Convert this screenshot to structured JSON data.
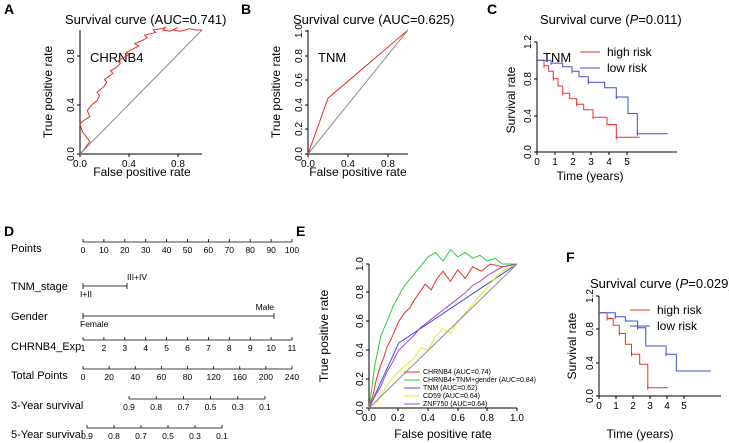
{
  "chart_data": [
    {
      "panel": "A",
      "type": "line",
      "title": "Survival curve (AUC=0.741)",
      "xlabel": "False positive rate",
      "ylabel": "True positive rate",
      "xlim": [
        0,
        1
      ],
      "ylim": [
        0,
        1
      ],
      "xticks": [
        "0.0",
        "0.4",
        "0.8"
      ],
      "yticks": [
        "0.0",
        "0.4",
        "0.8"
      ],
      "annotation": "CHRNB4",
      "series": [
        {
          "name": "CHRNB4",
          "color": "#e8302a",
          "x": [
            0,
            0.02,
            0.05,
            0.08,
            0.05,
            0.02,
            0.0,
            0.03,
            0.08,
            0.06,
            0.1,
            0.14,
            0.16,
            0.14,
            0.18,
            0.2,
            0.22,
            0.2,
            0.24,
            0.27,
            0.25,
            0.3,
            0.33,
            0.31,
            0.36,
            0.4,
            0.38,
            0.44,
            0.48,
            0.45,
            0.52,
            0.55,
            0.53,
            0.58,
            0.62,
            0.6,
            0.66,
            0.7,
            0.68,
            0.74,
            0.78,
            0.8,
            0.76,
            0.82,
            0.86,
            0.9,
            0.95,
            1.0
          ],
          "y": [
            0,
            0.02,
            0.06,
            0.1,
            0.14,
            0.18,
            0.24,
            0.27,
            0.3,
            0.35,
            0.4,
            0.43,
            0.47,
            0.5,
            0.53,
            0.55,
            0.58,
            0.6,
            0.63,
            0.65,
            0.67,
            0.7,
            0.73,
            0.75,
            0.78,
            0.8,
            0.82,
            0.85,
            0.87,
            0.89,
            0.92,
            0.94,
            0.96,
            0.97,
            0.98,
            1.0,
            1.01,
            1.02,
            1.0,
            0.99,
            1.01,
            1.02,
            1.0,
            0.99,
            1.0,
            1.01,
            1.0,
            1.0
          ]
        },
        {
          "name": "reference",
          "color": "#8c8c8c",
          "x": [
            0,
            1
          ],
          "y": [
            0,
            1
          ]
        }
      ]
    },
    {
      "panel": "B",
      "type": "line",
      "title": "Survival curve (AUC=0.625)",
      "xlabel": "False positive rate",
      "ylabel": "True positive rate",
      "xlim": [
        0,
        1
      ],
      "ylim": [
        0,
        1
      ],
      "xticks": [
        "0.0",
        "0.4",
        "0.8"
      ],
      "yticks": [
        "0.0",
        "0.2",
        "0.4",
        "0.6",
        "0.8",
        "1.0"
      ],
      "annotation": "TNM",
      "series": [
        {
          "name": "TNM",
          "color": "#e8302a",
          "x": [
            0,
            0.2,
            1
          ],
          "y": [
            0,
            0.45,
            1
          ]
        },
        {
          "name": "reference",
          "color": "#8c8c8c",
          "x": [
            0,
            1
          ],
          "y": [
            0,
            1
          ]
        }
      ]
    },
    {
      "panel": "C",
      "type": "line",
      "title_prefix": "Survival curve (",
      "title_p": "P",
      "title_suffix": "=0.011)",
      "xlabel": "Time (years)",
      "ylabel": "Survival rate",
      "xlim": [
        0,
        6
      ],
      "ylim": [
        0,
        1.2
      ],
      "xticks": [
        "0",
        "1",
        "2",
        "3",
        "4",
        "5"
      ],
      "yticks": [
        "0.0",
        "0.4",
        "0.8",
        "1.2"
      ],
      "annotation": "TNM",
      "legend": [
        "high risk",
        "low risk"
      ],
      "series": [
        {
          "name": "high risk",
          "color": "#e8302a",
          "x": [
            0,
            0.3,
            0.3,
            0.5,
            0.5,
            0.7,
            0.7,
            0.9,
            0.9,
            1.1,
            1.1,
            1.4,
            1.4,
            1.7,
            1.7,
            2.0,
            2.0,
            2.4,
            2.4,
            3.0,
            3.0,
            3.4,
            3.4,
            4.4
          ],
          "y": [
            1.0,
            1.0,
            0.94,
            0.94,
            0.88,
            0.88,
            0.8,
            0.8,
            0.72,
            0.72,
            0.64,
            0.64,
            0.58,
            0.58,
            0.52,
            0.52,
            0.46,
            0.46,
            0.38,
            0.38,
            0.3,
            0.3,
            0.16,
            0.16
          ]
        },
        {
          "name": "low risk",
          "color": "#3f4fd6",
          "x": [
            0,
            0.6,
            0.6,
            1.1,
            1.1,
            1.5,
            1.5,
            1.8,
            1.8,
            2.2,
            2.2,
            2.9,
            2.9,
            3.4,
            3.4,
            3.9,
            3.9,
            4.3,
            4.3,
            5.6
          ],
          "y": [
            1.0,
            1.0,
            0.97,
            0.97,
            0.93,
            0.93,
            0.88,
            0.88,
            0.82,
            0.82,
            0.76,
            0.76,
            0.7,
            0.7,
            0.6,
            0.6,
            0.42,
            0.42,
            0.2,
            0.2
          ]
        }
      ]
    },
    {
      "panel": "D",
      "type": "nomogram",
      "rows": [
        {
          "label": "Points",
          "scale": [
            "0",
            "10",
            "20",
            "30",
            "40",
            "50",
            "60",
            "70",
            "80",
            "90",
            "100"
          ]
        },
        {
          "label": "TNM_stage",
          "above": "III+IV",
          "below": "I+II"
        },
        {
          "label": "Gender",
          "above": "Male",
          "below": "Female"
        },
        {
          "label": "CHRNB4_Exp",
          "scale": [
            "1",
            "2",
            "3",
            "4",
            "5",
            "6",
            "7",
            "8",
            "9",
            "10",
            "11"
          ]
        },
        {
          "label": "Total Points",
          "scale": [
            "0",
            "20",
            "40",
            "60",
            "80",
            "120",
            "160",
            "200",
            "240"
          ]
        },
        {
          "label": "3-Year survival",
          "scale": [
            "0.9",
            "0.8",
            "0.7",
            "0.5",
            "0.3",
            "0.1"
          ]
        },
        {
          "label": "5-Year survival",
          "scale": [
            "0.9",
            "0.8",
            "0.7",
            "0.5",
            "0.3",
            "0.1"
          ]
        }
      ]
    },
    {
      "panel": "E",
      "type": "line",
      "xlabel": "False positive rate",
      "ylabel": "True positive rate",
      "xlim": [
        0,
        1
      ],
      "ylim": [
        0,
        1
      ],
      "xticks": [
        "0.0",
        "0.2",
        "0.4",
        "0.6",
        "0.8",
        "1.0"
      ],
      "yticks": [
        "0.0",
        "0.2",
        "0.4",
        "0.6",
        "0.8",
        "1.0"
      ],
      "legend": [
        "CHRNB4 (AUC=0.74)",
        "CHRNB4+TNM+gender (AUC=0.84)",
        "TNM (AUC=0.62)",
        "CD59 (AUC=0.64)",
        "ZNF750 (AUC=0.64)"
      ],
      "series": [
        {
          "name": "CHRNB4",
          "color": "#e8302a",
          "x": [
            0,
            0.03,
            0.05,
            0.08,
            0.1,
            0.12,
            0.15,
            0.18,
            0.2,
            0.24,
            0.28,
            0.3,
            0.34,
            0.38,
            0.42,
            0.46,
            0.5,
            0.55,
            0.6,
            0.65,
            0.7,
            0.76,
            0.82,
            0.9,
            1.0
          ],
          "y": [
            0,
            0.1,
            0.2,
            0.3,
            0.35,
            0.42,
            0.48,
            0.55,
            0.6,
            0.66,
            0.7,
            0.74,
            0.8,
            0.86,
            0.82,
            0.9,
            0.95,
            0.88,
            0.96,
            0.9,
            0.98,
            0.95,
            1.0,
            0.98,
            1.0
          ]
        },
        {
          "name": "CHRNB4+TNM+gender",
          "color": "#2ccd36",
          "x": [
            0,
            0.02,
            0.04,
            0.06,
            0.08,
            0.1,
            0.13,
            0.16,
            0.2,
            0.24,
            0.28,
            0.32,
            0.36,
            0.4,
            0.45,
            0.5,
            0.55,
            0.6,
            0.65,
            0.7,
            0.75,
            0.8,
            0.85,
            0.9,
            1.0
          ],
          "y": [
            0,
            0.15,
            0.3,
            0.4,
            0.5,
            0.55,
            0.62,
            0.7,
            0.78,
            0.85,
            0.9,
            0.95,
            1.0,
            1.05,
            1.08,
            1.02,
            1.1,
            1.05,
            1.08,
            1.04,
            1.06,
            1.02,
            1.04,
            1.0,
            1.0
          ]
        },
        {
          "name": "TNM",
          "color": "#3f4fd6",
          "x": [
            0,
            0.2,
            1
          ],
          "y": [
            0,
            0.45,
            1
          ]
        },
        {
          "name": "CD59",
          "color": "#f0e12a",
          "x": [
            0,
            0.06,
            0.1,
            0.15,
            0.2,
            0.25,
            0.3,
            0.35,
            0.4,
            0.45,
            0.5,
            0.55,
            0.6,
            0.65,
            0.7,
            0.75,
            0.8,
            0.85,
            0.9,
            1.0
          ],
          "y": [
            0,
            0.05,
            0.12,
            0.2,
            0.25,
            0.3,
            0.34,
            0.42,
            0.4,
            0.5,
            0.55,
            0.52,
            0.6,
            0.66,
            0.72,
            0.78,
            0.84,
            0.9,
            0.95,
            1.0
          ]
        },
        {
          "name": "ZNF750",
          "color": "#a447d6",
          "x": [
            0,
            0.04,
            0.08,
            0.12,
            0.16,
            0.2,
            0.25,
            0.3,
            0.35,
            0.4,
            0.45,
            0.5,
            0.55,
            0.6,
            0.65,
            0.7,
            0.75,
            0.8,
            0.85,
            0.9,
            1.0
          ],
          "y": [
            0,
            0.08,
            0.15,
            0.25,
            0.32,
            0.4,
            0.45,
            0.5,
            0.56,
            0.6,
            0.64,
            0.68,
            0.72,
            0.76,
            0.8,
            0.85,
            0.88,
            0.92,
            0.95,
            0.98,
            1.0
          ]
        },
        {
          "name": "reference",
          "color": "#8c8c8c",
          "x": [
            0,
            1
          ],
          "y": [
            0,
            1
          ]
        }
      ]
    },
    {
      "panel": "F",
      "type": "line",
      "title_prefix": "Survival curve (",
      "title_p": "P",
      "title_suffix": "=0.029)",
      "xlabel": "Time (years)",
      "ylabel": "Survival rate",
      "xlim": [
        0,
        6
      ],
      "ylim": [
        0,
        1.2
      ],
      "xticks": [
        "0",
        "1",
        "2",
        "3",
        "4",
        "5"
      ],
      "yticks": [
        "0.0",
        "0.4",
        "0.8",
        "1.2"
      ],
      "legend": [
        "high risk",
        "low risk"
      ],
      "series": [
        {
          "name": "high risk",
          "color": "#e8302a",
          "x": [
            0,
            0.4,
            0.4,
            0.7,
            0.7,
            1.0,
            1.0,
            1.3,
            1.3,
            1.6,
            1.6,
            2.0,
            2.0,
            2.4,
            2.4,
            3.4
          ],
          "y": [
            1.0,
            1.0,
            0.93,
            0.93,
            0.85,
            0.85,
            0.75,
            0.75,
            0.62,
            0.62,
            0.5,
            0.5,
            0.38,
            0.38,
            0.1,
            0.1
          ]
        },
        {
          "name": "low risk",
          "color": "#3f4fd6",
          "x": [
            0,
            0.8,
            0.8,
            1.3,
            1.3,
            1.9,
            1.9,
            2.3,
            2.3,
            3.3,
            3.3,
            3.8,
            3.8,
            5.5
          ],
          "y": [
            1.0,
            1.0,
            0.95,
            0.95,
            0.9,
            0.9,
            0.82,
            0.82,
            0.6,
            0.6,
            0.5,
            0.5,
            0.3,
            0.3
          ]
        }
      ]
    }
  ]
}
